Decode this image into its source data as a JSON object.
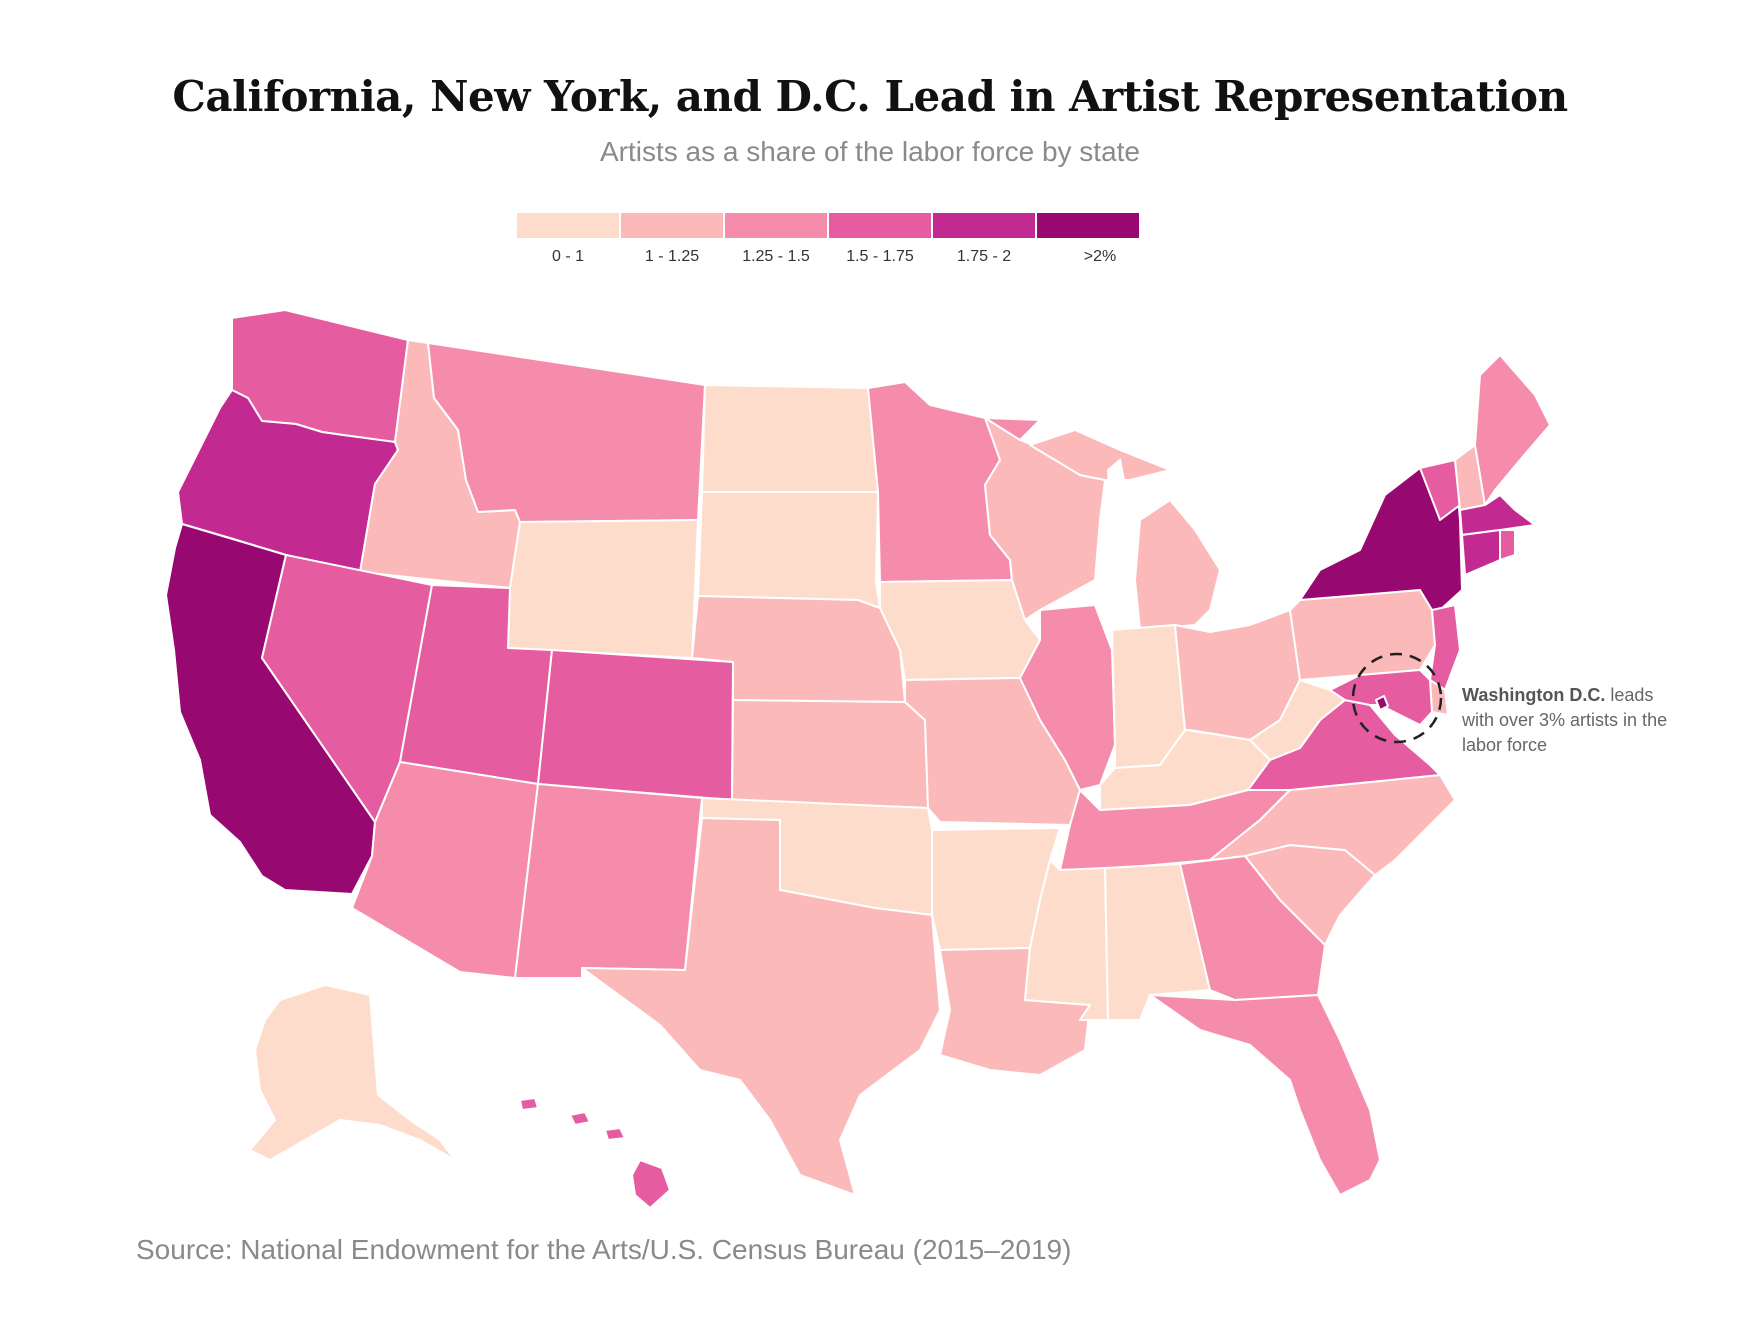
{
  "title": "California, New York, and D.C. Lead in Artist Representation",
  "subtitle": "Artists as a share of the labor force by state",
  "legend": [
    {
      "label": "0 - 1",
      "color": "#fddccc"
    },
    {
      "label": "1 - 1.25",
      "color": "#fbb9b9"
    },
    {
      "label": "1.25 - 1.5",
      "color": "#f58cab"
    },
    {
      "label": "1.5 - 1.75",
      "color": "#e55ca0"
    },
    {
      "label": "1.75 - 2",
      "color": "#c32a91"
    },
    {
      "label": ">2%",
      "color": "#970871"
    }
  ],
  "annotation": {
    "bold": "Washington D.C.",
    "rest": " leads with over 3% artists in the labor force"
  },
  "source": "Source: National Endowment for the Arts/U.S. Census Bureau (2015–2019)",
  "states": [
    {
      "id": "WA",
      "bin": 3
    },
    {
      "id": "OR",
      "bin": 4
    },
    {
      "id": "CA",
      "bin": 5
    },
    {
      "id": "ID",
      "bin": 1
    },
    {
      "id": "NV",
      "bin": 3
    },
    {
      "id": "MT",
      "bin": 2
    },
    {
      "id": "WY",
      "bin": 0
    },
    {
      "id": "UT",
      "bin": 3
    },
    {
      "id": "AZ",
      "bin": 2
    },
    {
      "id": "CO",
      "bin": 3
    },
    {
      "id": "NM",
      "bin": 2
    },
    {
      "id": "ND",
      "bin": 0
    },
    {
      "id": "SD",
      "bin": 0
    },
    {
      "id": "NE",
      "bin": 1
    },
    {
      "id": "KS",
      "bin": 1
    },
    {
      "id": "OK",
      "bin": 0
    },
    {
      "id": "TX",
      "bin": 1
    },
    {
      "id": "MN",
      "bin": 2
    },
    {
      "id": "IA",
      "bin": 0
    },
    {
      "id": "MO",
      "bin": 1
    },
    {
      "id": "AR",
      "bin": 0
    },
    {
      "id": "LA",
      "bin": 1
    },
    {
      "id": "WI",
      "bin": 1
    },
    {
      "id": "IL",
      "bin": 2
    },
    {
      "id": "MI",
      "bin": 1
    },
    {
      "id": "IN",
      "bin": 0
    },
    {
      "id": "OH",
      "bin": 1
    },
    {
      "id": "KY",
      "bin": 0
    },
    {
      "id": "TN",
      "bin": 2
    },
    {
      "id": "MS",
      "bin": 0
    },
    {
      "id": "AL",
      "bin": 0
    },
    {
      "id": "GA",
      "bin": 2
    },
    {
      "id": "FL",
      "bin": 2
    },
    {
      "id": "SC",
      "bin": 1
    },
    {
      "id": "NC",
      "bin": 1
    },
    {
      "id": "VA",
      "bin": 3
    },
    {
      "id": "WV",
      "bin": 0
    },
    {
      "id": "PA",
      "bin": 1
    },
    {
      "id": "NY",
      "bin": 5
    },
    {
      "id": "VT",
      "bin": 3
    },
    {
      "id": "NH",
      "bin": 1
    },
    {
      "id": "ME",
      "bin": 2
    },
    {
      "id": "MA",
      "bin": 4
    },
    {
      "id": "RI",
      "bin": 3
    },
    {
      "id": "CT",
      "bin": 4
    },
    {
      "id": "NJ",
      "bin": 3
    },
    {
      "id": "DE",
      "bin": 1
    },
    {
      "id": "MD",
      "bin": 3
    },
    {
      "id": "DC",
      "bin": 5
    },
    {
      "id": "AK",
      "bin": 0
    },
    {
      "id": "HI",
      "bin": 3
    }
  ]
}
